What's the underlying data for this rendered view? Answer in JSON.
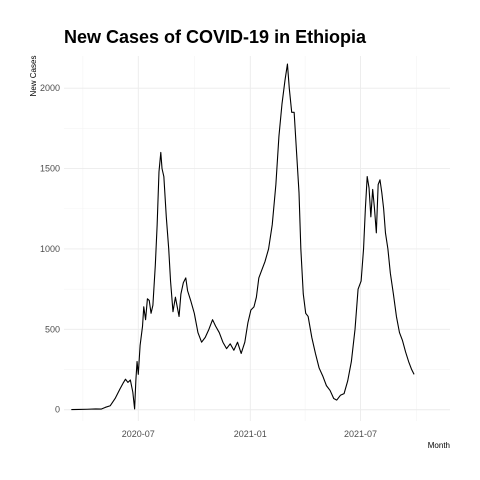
{
  "chart_data": {
    "type": "line",
    "title": "New Cases of COVID-19 in Ethiopia",
    "xlabel": "Month",
    "ylabel": "New Cases",
    "x_is_date": true,
    "xlim": [
      "2020-03-01",
      "2021-11-25"
    ],
    "ylim": [
      -70,
      2200
    ],
    "y_ticks": [
      0,
      500,
      1000,
      1500,
      2000
    ],
    "x_ticks": [
      {
        "date": "2020-07-01",
        "label": "2020-07"
      },
      {
        "date": "2021-01-01",
        "label": "2021-01"
      },
      {
        "date": "2021-07-01",
        "label": "2021-07"
      }
    ],
    "grid": true,
    "legend": "none",
    "series": [
      {
        "color": "#000000",
        "points": [
          [
            "2020-03-13",
            1
          ],
          [
            "2020-03-25",
            2
          ],
          [
            "2020-04-08",
            3
          ],
          [
            "2020-04-22",
            5
          ],
          [
            "2020-05-01",
            4
          ],
          [
            "2020-05-08",
            15
          ],
          [
            "2020-05-16",
            25
          ],
          [
            "2020-05-24",
            70
          ],
          [
            "2020-06-01",
            130
          ],
          [
            "2020-06-06",
            165
          ],
          [
            "2020-06-10",
            190
          ],
          [
            "2020-06-14",
            170
          ],
          [
            "2020-06-18",
            185
          ],
          [
            "2020-06-22",
            110
          ],
          [
            "2020-06-25",
            5
          ],
          [
            "2020-06-27",
            180
          ],
          [
            "2020-06-29",
            300
          ],
          [
            "2020-07-01",
            220
          ],
          [
            "2020-07-04",
            400
          ],
          [
            "2020-07-08",
            520
          ],
          [
            "2020-07-10",
            640
          ],
          [
            "2020-07-13",
            560
          ],
          [
            "2020-07-16",
            690
          ],
          [
            "2020-07-19",
            680
          ],
          [
            "2020-07-22",
            600
          ],
          [
            "2020-07-25",
            650
          ],
          [
            "2020-07-29",
            900
          ],
          [
            "2020-08-01",
            1150
          ],
          [
            "2020-08-04",
            1480
          ],
          [
            "2020-08-07",
            1600
          ],
          [
            "2020-08-09",
            1500
          ],
          [
            "2020-08-12",
            1450
          ],
          [
            "2020-08-16",
            1200
          ],
          [
            "2020-08-20",
            1000
          ],
          [
            "2020-08-23",
            800
          ],
          [
            "2020-08-27",
            610
          ],
          [
            "2020-08-31",
            700
          ],
          [
            "2020-09-03",
            640
          ],
          [
            "2020-09-06",
            580
          ],
          [
            "2020-09-09",
            720
          ],
          [
            "2020-09-13",
            790
          ],
          [
            "2020-09-17",
            820
          ],
          [
            "2020-09-20",
            740
          ],
          [
            "2020-09-25",
            680
          ],
          [
            "2020-10-01",
            600
          ],
          [
            "2020-10-07",
            480
          ],
          [
            "2020-10-13",
            420
          ],
          [
            "2020-10-19",
            450
          ],
          [
            "2020-10-25",
            500
          ],
          [
            "2020-10-31",
            560
          ],
          [
            "2020-11-05",
            520
          ],
          [
            "2020-11-11",
            480
          ],
          [
            "2020-11-17",
            420
          ],
          [
            "2020-11-23",
            380
          ],
          [
            "2020-11-29",
            410
          ],
          [
            "2020-12-05",
            370
          ],
          [
            "2020-12-11",
            420
          ],
          [
            "2020-12-17",
            350
          ],
          [
            "2020-12-23",
            420
          ],
          [
            "2020-12-28",
            540
          ],
          [
            "2021-01-02",
            620
          ],
          [
            "2021-01-07",
            640
          ],
          [
            "2021-01-11",
            700
          ],
          [
            "2021-01-15",
            820
          ],
          [
            "2021-01-19",
            860
          ],
          [
            "2021-01-25",
            920
          ],
          [
            "2021-01-31",
            1000
          ],
          [
            "2021-02-06",
            1150
          ],
          [
            "2021-02-12",
            1400
          ],
          [
            "2021-02-17",
            1700
          ],
          [
            "2021-02-22",
            1900
          ],
          [
            "2021-02-27",
            2050
          ],
          [
            "2021-03-03",
            2150
          ],
          [
            "2021-03-06",
            2000
          ],
          [
            "2021-03-10",
            1850
          ],
          [
            "2021-03-14",
            1850
          ],
          [
            "2021-03-18",
            1600
          ],
          [
            "2021-03-22",
            1350
          ],
          [
            "2021-03-25",
            1000
          ],
          [
            "2021-03-29",
            720
          ],
          [
            "2021-04-02",
            600
          ],
          [
            "2021-04-06",
            580
          ],
          [
            "2021-04-12",
            450
          ],
          [
            "2021-04-18",
            350
          ],
          [
            "2021-04-24",
            260
          ],
          [
            "2021-04-30",
            210
          ],
          [
            "2021-05-06",
            150
          ],
          [
            "2021-05-12",
            120
          ],
          [
            "2021-05-18",
            70
          ],
          [
            "2021-05-23",
            60
          ],
          [
            "2021-05-29",
            90
          ],
          [
            "2021-06-04",
            100
          ],
          [
            "2021-06-10",
            180
          ],
          [
            "2021-06-16",
            300
          ],
          [
            "2021-06-22",
            500
          ],
          [
            "2021-06-27",
            750
          ],
          [
            "2021-07-02",
            800
          ],
          [
            "2021-07-06",
            1000
          ],
          [
            "2021-07-09",
            1250
          ],
          [
            "2021-07-12",
            1450
          ],
          [
            "2021-07-15",
            1380
          ],
          [
            "2021-07-18",
            1200
          ],
          [
            "2021-07-21",
            1370
          ],
          [
            "2021-07-24",
            1250
          ],
          [
            "2021-07-27",
            1100
          ],
          [
            "2021-07-30",
            1400
          ],
          [
            "2021-08-02",
            1430
          ],
          [
            "2021-08-05",
            1350
          ],
          [
            "2021-08-08",
            1250
          ],
          [
            "2021-08-11",
            1100
          ],
          [
            "2021-08-15",
            1000
          ],
          [
            "2021-08-19",
            850
          ],
          [
            "2021-08-24",
            720
          ],
          [
            "2021-08-29",
            580
          ],
          [
            "2021-09-03",
            480
          ],
          [
            "2021-09-08",
            430
          ],
          [
            "2021-09-13",
            360
          ],
          [
            "2021-09-18",
            300
          ],
          [
            "2021-09-23",
            250
          ],
          [
            "2021-09-27",
            220
          ]
        ]
      }
    ]
  }
}
